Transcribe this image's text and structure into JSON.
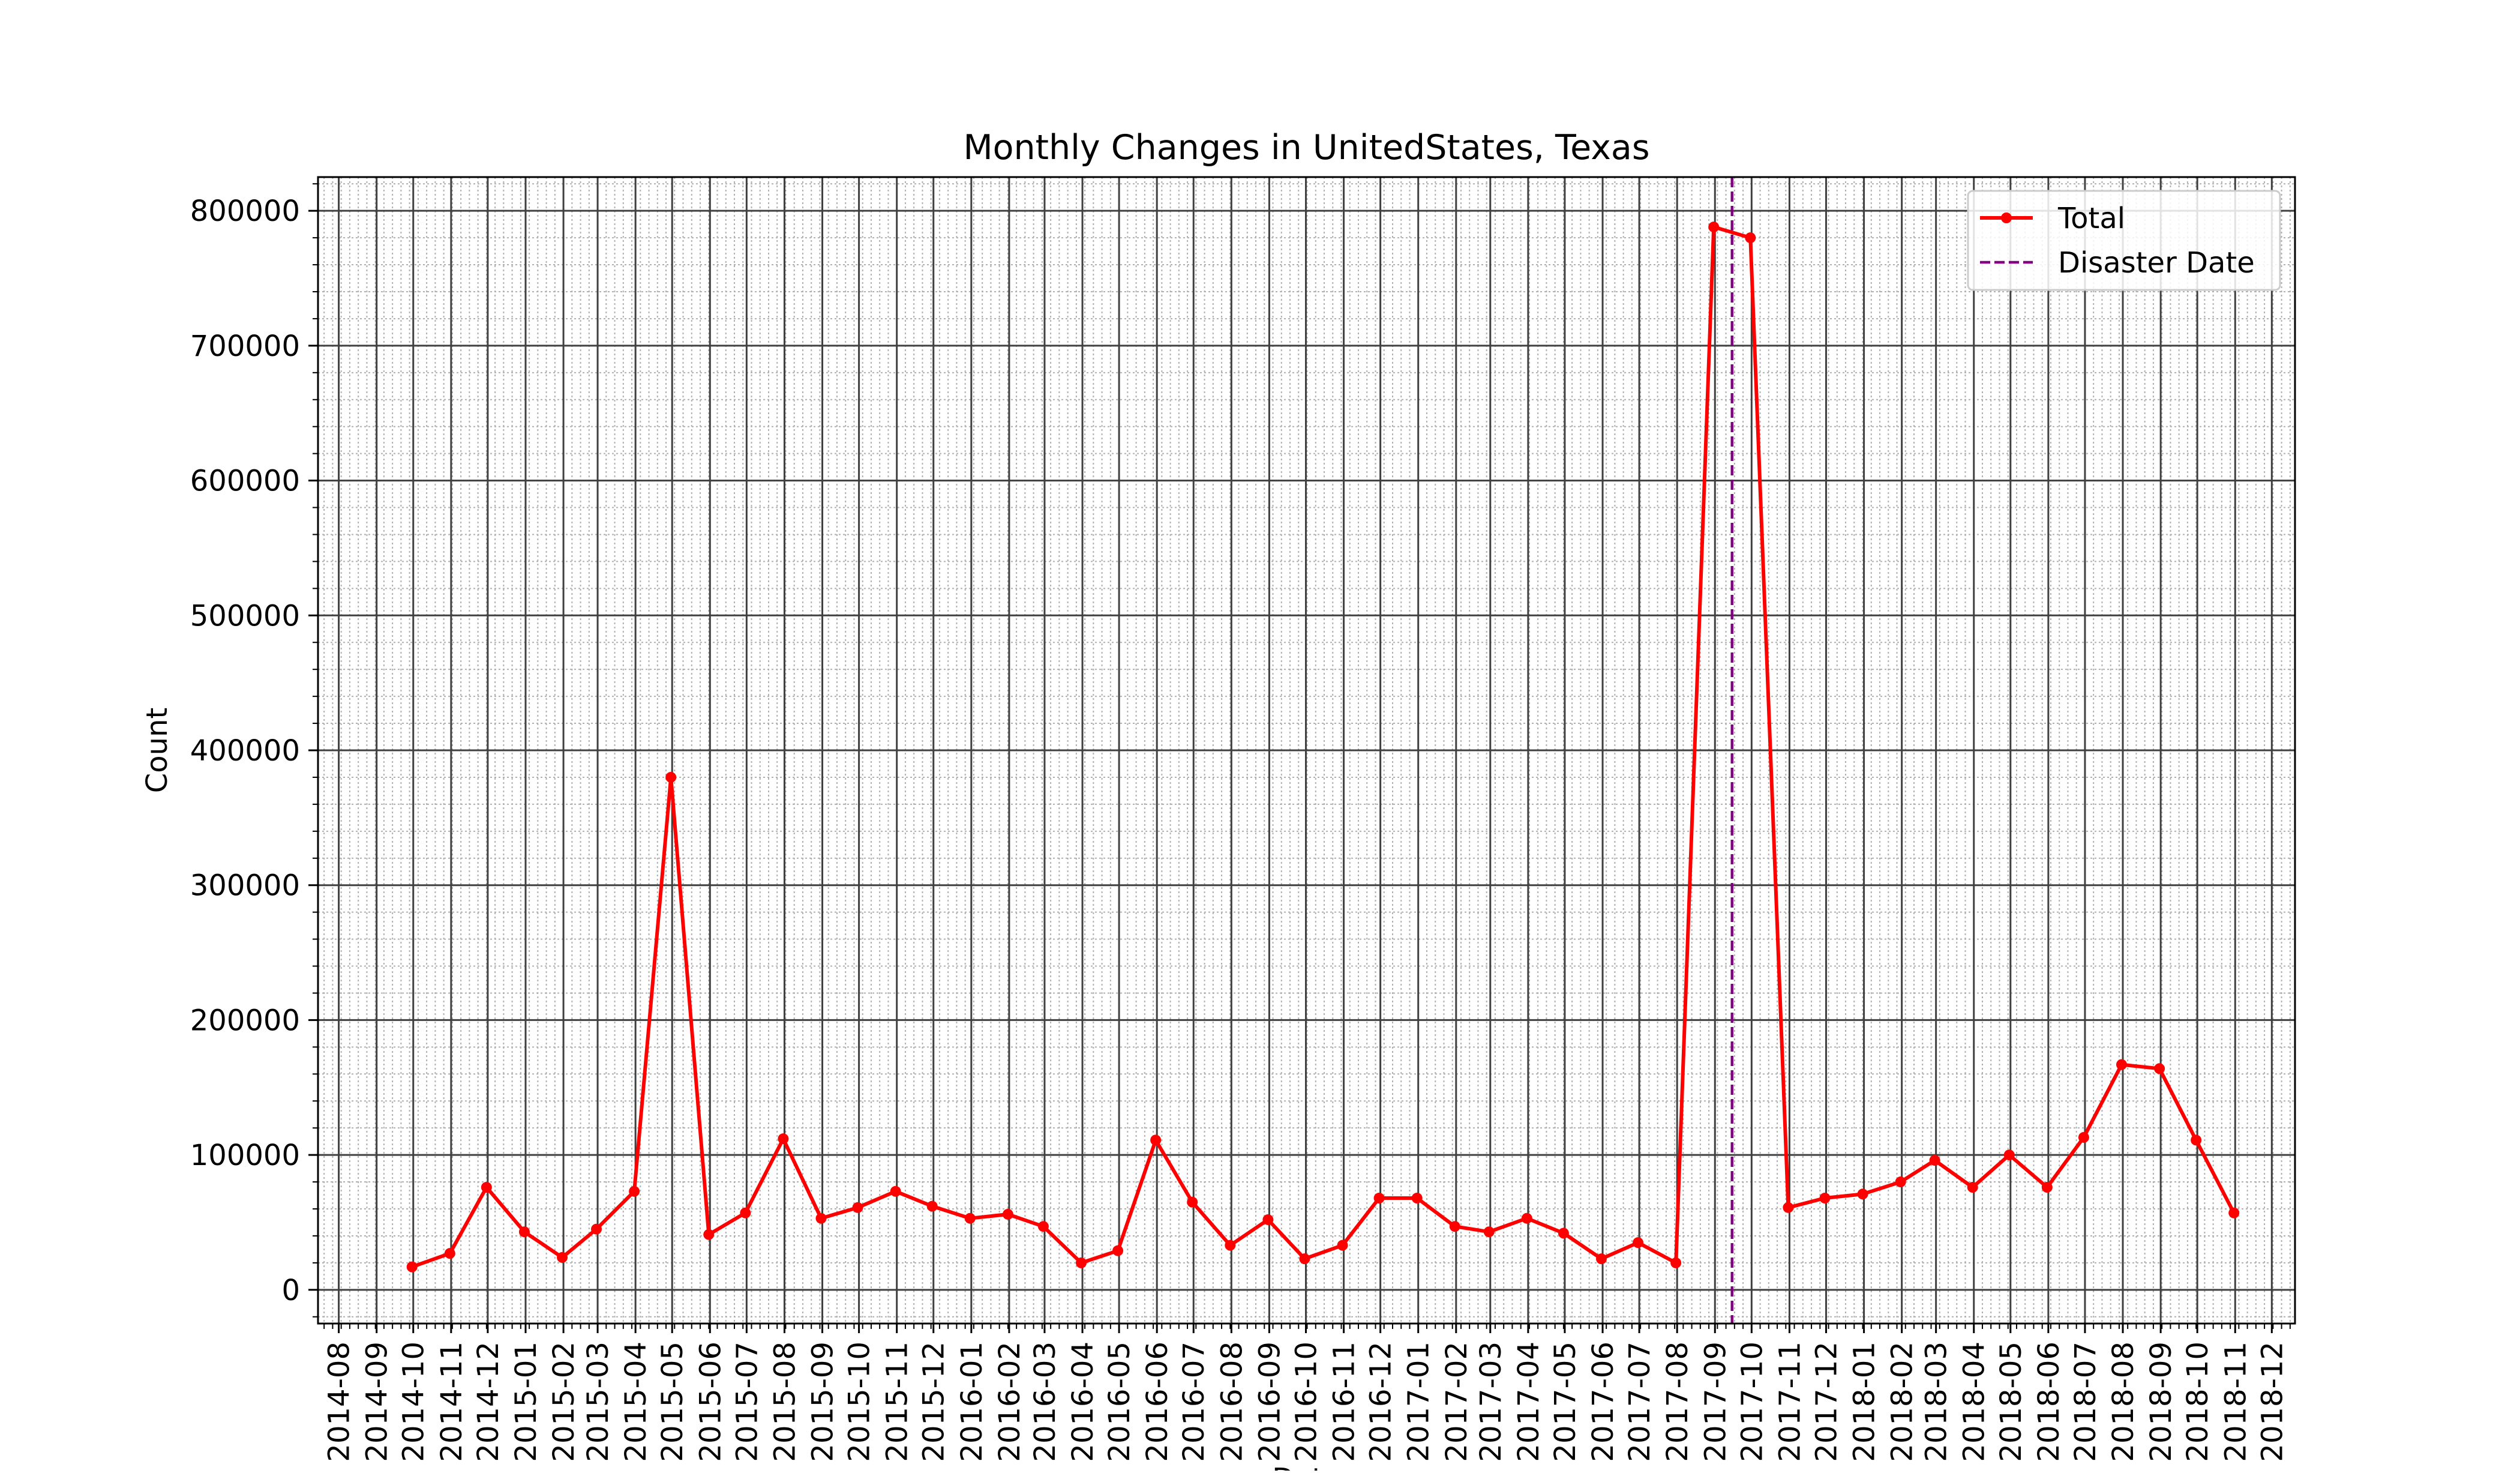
{
  "chart_data": {
    "type": "line",
    "title": "Monthly Changes in UnitedStates, Texas",
    "xlabel": "Date",
    "ylabel": "Count",
    "x_axis": {
      "kind": "date",
      "range": [
        "2014-07-15",
        "2018-12-20"
      ],
      "tick_labels": [
        "2014-08",
        "2014-09",
        "2014-10",
        "2014-11",
        "2014-12",
        "2015-01",
        "2015-02",
        "2015-03",
        "2015-04",
        "2015-05",
        "2015-06",
        "2015-07",
        "2015-08",
        "2015-09",
        "2015-10",
        "2015-11",
        "2015-12",
        "2016-01",
        "2016-02",
        "2016-03",
        "2016-04",
        "2016-05",
        "2016-06",
        "2016-07",
        "2016-08",
        "2016-09",
        "2016-10",
        "2016-11",
        "2016-12",
        "2017-01",
        "2017-02",
        "2017-03",
        "2017-04",
        "2017-05",
        "2017-06",
        "2017-07",
        "2017-08",
        "2017-09",
        "2017-10",
        "2017-11",
        "2017-12",
        "2018-01",
        "2018-02",
        "2018-03",
        "2018-04",
        "2018-05",
        "2018-06",
        "2018-07",
        "2018-08",
        "2018-09",
        "2018-10",
        "2018-11",
        "2018-12"
      ]
    },
    "y_axis": {
      "range": [
        -25000,
        825000
      ],
      "ticks": [
        0,
        100000,
        200000,
        300000,
        400000,
        500000,
        600000,
        700000,
        800000
      ],
      "tick_labels": [
        "0",
        "100000",
        "200000",
        "300000",
        "400000",
        "500000",
        "600000",
        "700000",
        "800000"
      ]
    },
    "grid": {
      "major": true,
      "minor": true
    },
    "legend": {
      "placement": "upper right"
    },
    "series": [
      {
        "name": "Total",
        "color": "#ff0000",
        "marker": "circle",
        "points": [
          {
            "x": "2014-09-30",
            "y": 17000
          },
          {
            "x": "2014-10-31",
            "y": 27000
          },
          {
            "x": "2014-11-30",
            "y": 76000
          },
          {
            "x": "2014-12-31",
            "y": 43000
          },
          {
            "x": "2015-01-31",
            "y": 24000
          },
          {
            "x": "2015-02-28",
            "y": 45000
          },
          {
            "x": "2015-03-31",
            "y": 73000
          },
          {
            "x": "2015-04-30",
            "y": 380000
          },
          {
            "x": "2015-05-31",
            "y": 41000
          },
          {
            "x": "2015-06-30",
            "y": 57000
          },
          {
            "x": "2015-07-31",
            "y": 112000
          },
          {
            "x": "2015-08-31",
            "y": 53000
          },
          {
            "x": "2015-09-30",
            "y": 61000
          },
          {
            "x": "2015-10-31",
            "y": 73000
          },
          {
            "x": "2015-11-30",
            "y": 62000
          },
          {
            "x": "2015-12-31",
            "y": 53000
          },
          {
            "x": "2016-01-31",
            "y": 56000
          },
          {
            "x": "2016-02-29",
            "y": 47000
          },
          {
            "x": "2016-03-31",
            "y": 20000
          },
          {
            "x": "2016-04-30",
            "y": 29000
          },
          {
            "x": "2016-05-31",
            "y": 111000
          },
          {
            "x": "2016-06-30",
            "y": 65000
          },
          {
            "x": "2016-07-31",
            "y": 33000
          },
          {
            "x": "2016-08-31",
            "y": 52000
          },
          {
            "x": "2016-09-30",
            "y": 23000
          },
          {
            "x": "2016-10-31",
            "y": 33000
          },
          {
            "x": "2016-11-30",
            "y": 68000
          },
          {
            "x": "2016-12-31",
            "y": 68000
          },
          {
            "x": "2017-01-31",
            "y": 47000
          },
          {
            "x": "2017-02-28",
            "y": 43000
          },
          {
            "x": "2017-03-31",
            "y": 53000
          },
          {
            "x": "2017-04-30",
            "y": 42000
          },
          {
            "x": "2017-05-31",
            "y": 23000
          },
          {
            "x": "2017-06-30",
            "y": 35000
          },
          {
            "x": "2017-07-31",
            "y": 20000
          },
          {
            "x": "2017-08-31",
            "y": 788000
          },
          {
            "x": "2017-09-30",
            "y": 780000
          },
          {
            "x": "2017-10-31",
            "y": 61000
          },
          {
            "x": "2017-11-30",
            "y": 68000
          },
          {
            "x": "2017-12-31",
            "y": 71000
          },
          {
            "x": "2018-01-31",
            "y": 80000
          },
          {
            "x": "2018-02-28",
            "y": 96000
          },
          {
            "x": "2018-03-31",
            "y": 76000
          },
          {
            "x": "2018-04-30",
            "y": 100000
          },
          {
            "x": "2018-05-31",
            "y": 76000
          },
          {
            "x": "2018-06-30",
            "y": 113000
          },
          {
            "x": "2018-07-31",
            "y": 167000
          },
          {
            "x": "2018-08-31",
            "y": 164000
          },
          {
            "x": "2018-09-30",
            "y": 111000
          },
          {
            "x": "2018-10-31",
            "y": 57000
          }
        ]
      }
    ],
    "vlines": [
      {
        "name": "Disaster Date",
        "x": "2017-09-15",
        "color": "#800080",
        "style": "dashed"
      }
    ]
  }
}
